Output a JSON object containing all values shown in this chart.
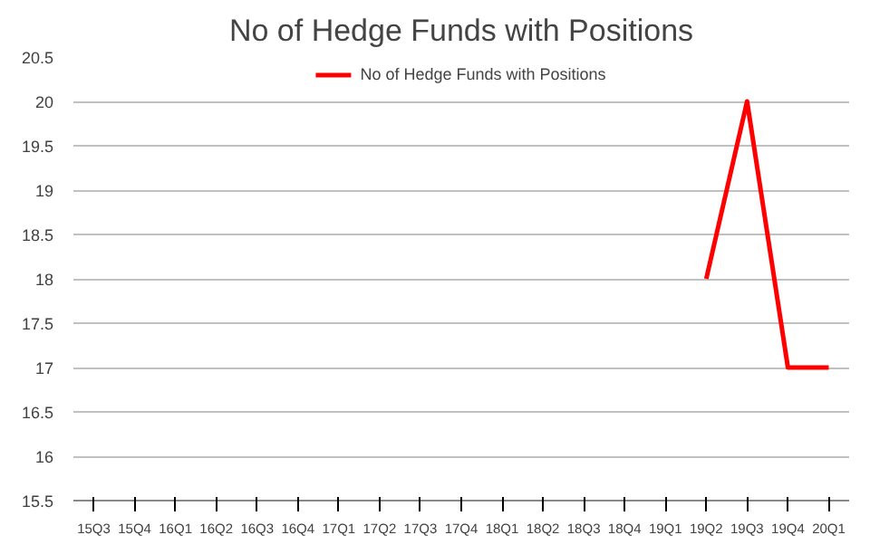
{
  "chart_data": {
    "type": "line",
    "title": "No of Hedge Funds with Positions",
    "categories": [
      "15Q3",
      "15Q4",
      "16Q1",
      "16Q2",
      "16Q3",
      "16Q4",
      "17Q1",
      "17Q2",
      "17Q3",
      "17Q4",
      "18Q1",
      "18Q2",
      "18Q3",
      "18Q4",
      "19Q1",
      "19Q2",
      "19Q3",
      "19Q4",
      "20Q1"
    ],
    "series": [
      {
        "name": "No of Hedge Funds with Positions",
        "color": "#ff0000",
        "values": [
          null,
          null,
          null,
          null,
          null,
          null,
          null,
          null,
          null,
          null,
          null,
          null,
          null,
          null,
          null,
          18,
          20,
          17,
          17
        ]
      }
    ],
    "ylim": [
      15.5,
      20.5
    ],
    "yticks": [
      {
        "value": 15.5,
        "label": "15.5"
      },
      16,
      {
        "value": 16.5,
        "label": "16.5"
      },
      17,
      {
        "value": 17.5,
        "label": "17.5"
      },
      18,
      {
        "value": 18.5,
        "label": "18.5"
      },
      19,
      {
        "value": 19.5,
        "label": "19.5"
      },
      20,
      {
        "value": 20.5,
        "label": "20.5"
      }
    ],
    "grid": "y",
    "legend": "top"
  }
}
